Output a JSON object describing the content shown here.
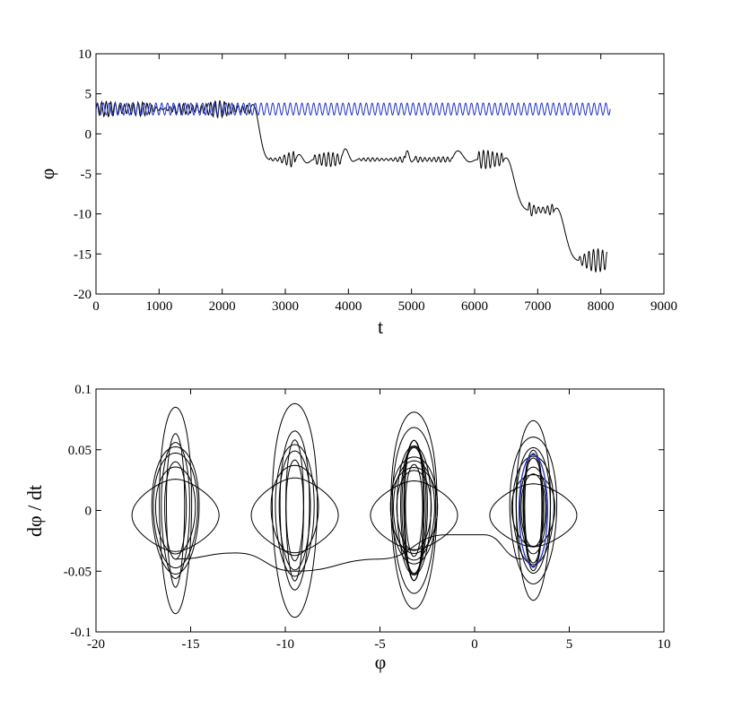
{
  "chart_data": [
    {
      "type": "line",
      "xlabel": "t",
      "ylabel": "φ",
      "xlim": [
        0,
        9000
      ],
      "ylim": [
        -20,
        10
      ],
      "xticks": [
        "0",
        "1000",
        "2000",
        "3000",
        "4000",
        "5000",
        "6000",
        "7000",
        "8000",
        "9000"
      ],
      "yticks": [
        "10",
        "5",
        "0",
        "-5",
        "-10",
        "-15",
        "-20"
      ],
      "grid": false,
      "series": [
        {
          "color": "#000000",
          "style": "oscillating plateaus",
          "segments": [
            {
              "t_start": 0,
              "t_end": 2450,
              "center": 3.1,
              "amplitude": 1.1
            },
            {
              "t_start": 2750,
              "t_end": 3150,
              "center": -3.2,
              "amplitude": 1.2
            },
            {
              "t_start": 3450,
              "t_end": 3900,
              "center": -3.2,
              "amplitude": 1.0
            },
            {
              "t_start": 4150,
              "t_end": 4900,
              "center": -3.2,
              "amplitude": 0.4
            },
            {
              "t_start": 5050,
              "t_end": 5650,
              "center": -3.2,
              "amplitude": 0.5
            },
            {
              "t_start": 6050,
              "t_end": 6450,
              "center": -3.2,
              "amplitude": 1.5
            },
            {
              "t_start": 6850,
              "t_end": 7250,
              "center": -9.5,
              "amplitude": 1.5
            },
            {
              "t_start": 7650,
              "t_end": 8100,
              "center": -15.8,
              "amplitude": 1.5
            }
          ],
          "transitions": [
            [
              2450,
              2750
            ],
            [
              6450,
              6850
            ],
            [
              7250,
              7650
            ]
          ]
        },
        {
          "color": "#2233cc",
          "style": "steady oscillation",
          "t_start": 0,
          "t_end": 8150,
          "center": 3.1,
          "amplitude": 0.75,
          "cycles": 88
        }
      ]
    },
    {
      "type": "line",
      "xlabel": "φ",
      "ylabel": "dφ / dt",
      "xlim": [
        -20,
        10
      ],
      "ylim": [
        -0.1,
        0.1
      ],
      "xticks": [
        "-20",
        "-15",
        "-10",
        "-5",
        "0",
        "5",
        "10"
      ],
      "yticks": [
        "0.1",
        "0.05",
        "0",
        "-0.05",
        "-0.1"
      ],
      "grid": false,
      "series": [
        {
          "color": "#000000",
          "style": "phase-space orbits",
          "orbit_centers": [
            -15.8,
            -9.5,
            -3.2,
            3.1
          ],
          "max_velocity": [
            0.085,
            0.088,
            0.081,
            0.074
          ],
          "path": [
            [
              -15.8,
              -0.04
            ],
            [
              -12.6,
              -0.035
            ],
            [
              -9.5,
              -0.05
            ],
            [
              -5.0,
              -0.04
            ],
            [
              -1.5,
              -0.02
            ],
            [
              0.5,
              -0.02
            ],
            [
              2.5,
              -0.04
            ]
          ]
        },
        {
          "color": "#2233cc",
          "style": "closed ellipse",
          "center": 3.1,
          "amplitude_phi": 0.75,
          "amplitude_velocity": 0.046
        }
      ]
    }
  ]
}
